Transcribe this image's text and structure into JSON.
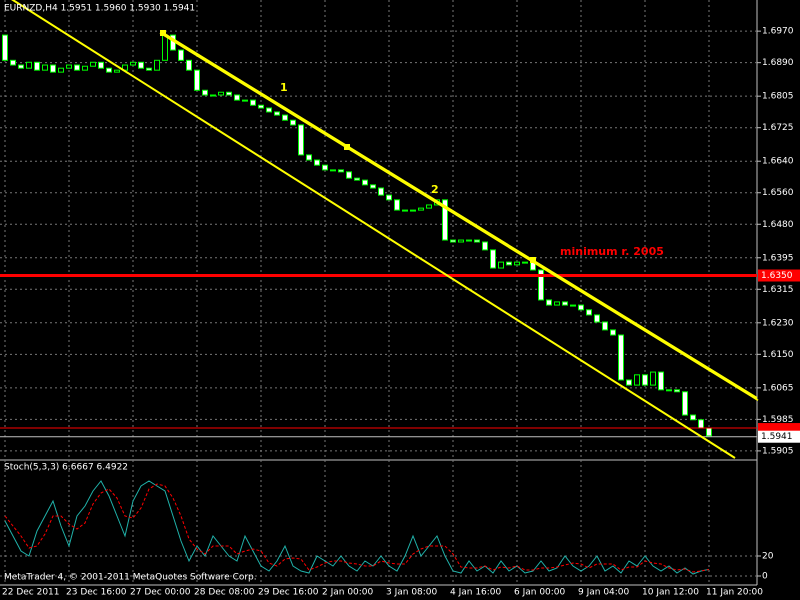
{
  "chart_data": [
    {
      "type": "candlestick",
      "title": "EURNZD,H4  1.5951 1.5960 1.5930 1.5941",
      "categories": [
        "22 Dec 2011",
        null,
        null,
        null,
        null,
        null,
        null,
        null,
        "23 Dec 16:00",
        null,
        null,
        null,
        null,
        null,
        null,
        null,
        "27 Dec 00:00",
        null,
        null,
        null,
        null,
        null,
        null,
        null,
        "28 Dec 08:00",
        null,
        null,
        null,
        null,
        null,
        null,
        null,
        "29 Dec 16:00",
        null,
        null,
        null,
        null,
        null,
        null,
        null,
        "2 Jan 00:00",
        null,
        null,
        null,
        null,
        null,
        null,
        null,
        "3 Jan 08:00",
        null,
        null,
        null,
        null,
        null,
        null,
        null,
        "4 Jan 16:00",
        null,
        null,
        null,
        null,
        null,
        null,
        null,
        "6 Jan 00:00",
        null,
        null,
        null,
        null,
        null,
        null,
        null,
        "9 Jan 04:00",
        null,
        null,
        null,
        null,
        null,
        null,
        null,
        "10 Jan 12:00",
        null,
        null,
        null,
        null,
        null,
        null,
        null,
        "11 Jan 20:00"
      ],
      "open": [
        1.696,
        1.6896,
        1.6884,
        1.6876,
        1.6891,
        1.6871,
        1.6884,
        1.6866,
        1.6876,
        1.6884,
        1.6871,
        1.6881,
        1.6891,
        1.6876,
        1.6866,
        1.6871,
        1.6884,
        1.6891,
        1.6876,
        1.6871,
        1.6896,
        1.696,
        1.6922,
        1.6896,
        1.6871,
        1.682,
        1.6808,
        1.6808,
        1.6815,
        1.6808,
        1.6795,
        1.6795,
        1.6782,
        1.6775,
        1.6765,
        1.6757,
        1.6744,
        1.6732,
        1.6656,
        1.6643,
        1.663,
        1.6618,
        1.6618,
        1.6613,
        1.6597,
        1.6592,
        1.658,
        1.6572,
        1.6554,
        1.6542,
        1.6516,
        1.6516,
        1.6516,
        1.6521,
        1.6529,
        1.6542,
        1.644,
        1.6435,
        1.644,
        1.644,
        1.6435,
        1.6415,
        1.6369,
        1.6384,
        1.6377,
        1.6384,
        1.6384,
        1.6364,
        1.6288,
        1.6275,
        1.6283,
        1.6275,
        1.6275,
        1.6263,
        1.625,
        1.6232,
        1.6212,
        1.6199,
        1.6085,
        1.6072,
        1.6098,
        1.6072,
        1.6105,
        1.606,
        1.606,
        1.6055,
        1.5996,
        1.5984,
        1.5963
      ],
      "close": [
        1.6896,
        1.6884,
        1.6876,
        1.6891,
        1.6871,
        1.6884,
        1.6866,
        1.6876,
        1.6884,
        1.6871,
        1.6881,
        1.6891,
        1.6876,
        1.6866,
        1.6871,
        1.6884,
        1.6891,
        1.6876,
        1.6871,
        1.6896,
        1.696,
        1.6922,
        1.6896,
        1.6871,
        1.682,
        1.6808,
        1.6808,
        1.6815,
        1.6808,
        1.6795,
        1.6795,
        1.6782,
        1.6775,
        1.6765,
        1.6757,
        1.6744,
        1.6732,
        1.6656,
        1.6643,
        1.663,
        1.6618,
        1.6618,
        1.6613,
        1.6597,
        1.6592,
        1.658,
        1.6572,
        1.6554,
        1.6542,
        1.6516,
        1.6516,
        1.6516,
        1.6521,
        1.6529,
        1.6542,
        1.644,
        1.6435,
        1.644,
        1.644,
        1.6435,
        1.6415,
        1.6369,
        1.6384,
        1.6377,
        1.6384,
        1.6384,
        1.6364,
        1.6288,
        1.6275,
        1.6283,
        1.6275,
        1.6275,
        1.6263,
        1.625,
        1.6232,
        1.6212,
        1.6199,
        1.6085,
        1.6072,
        1.6098,
        1.6072,
        1.6105,
        1.606,
        1.606,
        1.6055,
        1.5996,
        1.5984,
        1.5963,
        1.5943
      ],
      "up_color": "#000000",
      "down_color": "#ffffff",
      "outline_color": "#00ff00",
      "ylim": [
        1.5887,
        1.7049
      ],
      "yticks": [
        {
          "value": 1.697,
          "label": "1.6970"
        },
        {
          "value": 1.689,
          "label": "1.6890"
        },
        {
          "value": 1.6805,
          "label": "1.6805"
        },
        {
          "value": 1.6725,
          "label": "1.6725"
        },
        {
          "value": 1.664,
          "label": "1.6640"
        },
        {
          "value": 1.656,
          "label": "1.6560"
        },
        {
          "value": 1.648,
          "label": "1.6480"
        },
        {
          "value": 1.6395,
          "label": "1.6395"
        },
        {
          "value": 1.6315,
          "label": "1.6315"
        },
        {
          "value": 1.623,
          "label": "1.6230"
        },
        {
          "value": 1.615,
          "label": "1.6150"
        },
        {
          "value": 1.6065,
          "label": "1.6065"
        },
        {
          "value": 1.5985,
          "label": "1.5985"
        },
        {
          "value": 1.5905,
          "label": "1.5905"
        }
      ],
      "grid": true,
      "level_line": {
        "value": 1.635,
        "label": "1.6350",
        "color": "#ff0000"
      },
      "bid_line": {
        "value": 1.5941,
        "label": "1.5941"
      },
      "ask_line": {
        "value": 1.5963,
        "color": "#ff0000"
      },
      "annotations": [
        "1",
        "2",
        "minimum r. 2005"
      ]
    },
    {
      "type": "line",
      "title": "Stoch(5,3,3) 6.6667 6.4922",
      "series": [
        {
          "name": "main",
          "color": "#20b2aa",
          "values": [
            55,
            40,
            25,
            20,
            45,
            60,
            75,
            50,
            30,
            60,
            70,
            85,
            95,
            80,
            60,
            40,
            75,
            90,
            95,
            90,
            85,
            60,
            35,
            15,
            30,
            20,
            40,
            30,
            20,
            15,
            40,
            25,
            10,
            5,
            15,
            30,
            10,
            5,
            3,
            20,
            15,
            10,
            20,
            10,
            5,
            15,
            10,
            20,
            10,
            5,
            20,
            40,
            20,
            30,
            40,
            20,
            5,
            3,
            15,
            5,
            10,
            3,
            15,
            5,
            10,
            3,
            5,
            15,
            5,
            8,
            20,
            10,
            5,
            10,
            20,
            5,
            10,
            3,
            15,
            10,
            20,
            10,
            5,
            10,
            3,
            8,
            2,
            5,
            6.6667
          ]
        },
        {
          "name": "signal",
          "color": "#ff0000",
          "values": [
            60,
            50,
            40,
            28,
            30,
            42,
            60,
            60,
            52,
            47,
            53,
            72,
            83,
            87,
            78,
            60,
            58,
            68,
            87,
            92,
            90,
            78,
            60,
            37,
            27,
            22,
            30,
            30,
            30,
            22,
            25,
            27,
            25,
            13,
            10,
            17,
            18,
            17,
            6,
            9,
            13,
            15,
            15,
            13,
            12,
            10,
            10,
            15,
            13,
            12,
            12,
            22,
            27,
            30,
            30,
            30,
            22,
            9,
            8,
            8,
            10,
            6,
            9,
            8,
            10,
            6,
            6,
            8,
            8,
            9,
            11,
            13,
            12,
            8,
            12,
            12,
            12,
            6,
            9,
            9,
            15,
            13,
            12,
            8,
            6,
            7,
            4,
            5,
            6.4922
          ]
        }
      ],
      "ylim": [
        -9,
        106
      ],
      "yticks": [
        0,
        20
      ],
      "footer": "MetaTrader 4, © 2001-2011 MetaQuotes Software Corp."
    }
  ]
}
